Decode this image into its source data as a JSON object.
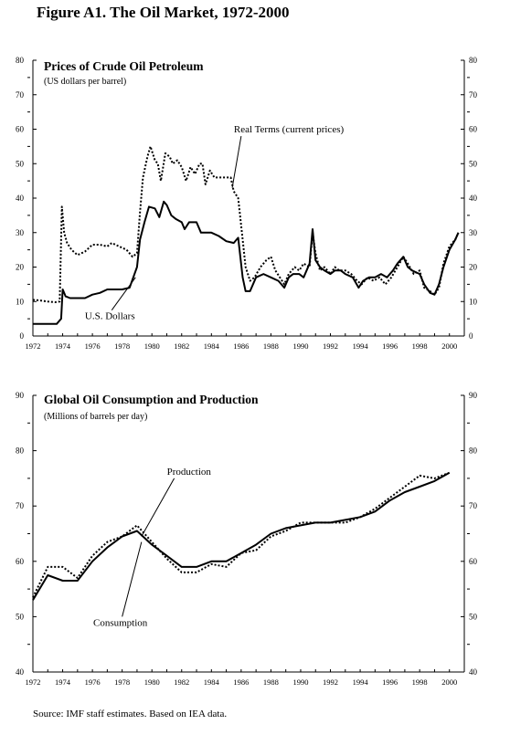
{
  "figure_title": "Figure  A1. The Oil Market, 1972-2000",
  "source": "Source:  IMF staff estimates.  Based on IEA data.",
  "chart_data": [
    {
      "type": "line",
      "title": "Prices of Crude Oil Petroleum",
      "subtitle": "(US dollars per barrel)",
      "xlim": [
        1972,
        2001
      ],
      "ylim": [
        0,
        80
      ],
      "x_ticks": [
        "1972",
        "1974",
        "1976",
        "1978",
        "1980",
        "1982",
        "1984",
        "1986",
        "1988",
        "1990",
        "1992",
        "1994",
        "1996",
        "1998",
        "2000"
      ],
      "y_ticks": [
        "0",
        "10",
        "20",
        "30",
        "40",
        "50",
        "60",
        "70",
        "80"
      ],
      "grid": false,
      "series": [
        {
          "name": "Real Terms (current prices)",
          "style": "dotted",
          "points": [
            [
              1972.0,
              10.5
            ],
            [
              1972.5,
              10.3
            ],
            [
              1973.0,
              10.0
            ],
            [
              1973.5,
              9.8
            ],
            [
              1973.8,
              10.0
            ],
            [
              1973.95,
              37.5
            ],
            [
              1974.1,
              30
            ],
            [
              1974.3,
              27
            ],
            [
              1974.6,
              25
            ],
            [
              1975.0,
              23.5
            ],
            [
              1975.5,
              24.5
            ],
            [
              1976.0,
              26.5
            ],
            [
              1976.5,
              26.5
            ],
            [
              1977.0,
              26
            ],
            [
              1977.3,
              27
            ],
            [
              1977.8,
              26
            ],
            [
              1978.3,
              25
            ],
            [
              1978.7,
              23
            ],
            [
              1979.0,
              24
            ],
            [
              1979.2,
              36
            ],
            [
              1979.4,
              46
            ],
            [
              1979.7,
              52
            ],
            [
              1979.9,
              55
            ],
            [
              1980.2,
              51
            ],
            [
              1980.4,
              50
            ],
            [
              1980.6,
              45
            ],
            [
              1980.9,
              53
            ],
            [
              1981.2,
              52
            ],
            [
              1981.4,
              50
            ],
            [
              1981.7,
              51
            ],
            [
              1982.0,
              49
            ],
            [
              1982.3,
              45
            ],
            [
              1982.6,
              49
            ],
            [
              1982.9,
              47
            ],
            [
              1983.2,
              50
            ],
            [
              1983.4,
              50
            ],
            [
              1983.6,
              44
            ],
            [
              1983.9,
              48
            ],
            [
              1984.2,
              46
            ],
            [
              1984.5,
              46
            ],
            [
              1985.0,
              46
            ],
            [
              1985.3,
              46
            ],
            [
              1985.5,
              42
            ],
            [
              1985.8,
              40
            ],
            [
              1986.1,
              28
            ],
            [
              1986.3,
              20
            ],
            [
              1986.6,
              16
            ],
            [
              1986.9,
              17
            ],
            [
              1987.3,
              20
            ],
            [
              1987.7,
              22
            ],
            [
              1988.0,
              23
            ],
            [
              1988.3,
              19
            ],
            [
              1988.6,
              17
            ],
            [
              1988.9,
              15
            ],
            [
              1989.2,
              18
            ],
            [
              1989.6,
              20
            ],
            [
              1989.9,
              19
            ],
            [
              1990.2,
              21
            ],
            [
              1990.6,
              20
            ],
            [
              1990.8,
              30
            ],
            [
              1991.0,
              24
            ],
            [
              1991.3,
              19
            ],
            [
              1991.6,
              20
            ],
            [
              1992.0,
              18
            ],
            [
              1992.3,
              20
            ],
            [
              1992.6,
              19
            ],
            [
              1993.0,
              19
            ],
            [
              1993.4,
              18
            ],
            [
              1993.8,
              16
            ],
            [
              1994.1,
              15
            ],
            [
              1994.5,
              17
            ],
            [
              1994.9,
              16
            ],
            [
              1995.3,
              17
            ],
            [
              1995.7,
              15
            ],
            [
              1996.1,
              17
            ],
            [
              1996.5,
              20
            ],
            [
              1996.9,
              23
            ],
            [
              1997.2,
              21
            ],
            [
              1997.6,
              18
            ],
            [
              1998.0,
              19
            ],
            [
              1998.3,
              14
            ],
            [
              1998.7,
              13
            ],
            [
              1999.0,
              12
            ],
            [
              1999.3,
              14
            ],
            [
              1999.6,
              21
            ],
            [
              2000.0,
              26
            ],
            [
              2000.4,
              28
            ],
            [
              2000.6,
              30
            ]
          ]
        },
        {
          "name": "U.S. Dollars",
          "style": "solid",
          "points": [
            [
              1972.0,
              3.5
            ],
            [
              1972.5,
              3.5
            ],
            [
              1973.0,
              3.5
            ],
            [
              1973.6,
              3.5
            ],
            [
              1973.9,
              5
            ],
            [
              1974.0,
              13.5
            ],
            [
              1974.2,
              11.5
            ],
            [
              1974.5,
              11
            ],
            [
              1975.0,
              11
            ],
            [
              1975.5,
              11
            ],
            [
              1976.0,
              12
            ],
            [
              1976.5,
              12.5
            ],
            [
              1977.0,
              13.5
            ],
            [
              1977.5,
              13.5
            ],
            [
              1978.0,
              13.5
            ],
            [
              1978.5,
              14
            ],
            [
              1979.0,
              20
            ],
            [
              1979.2,
              28
            ],
            [
              1979.5,
              33
            ],
            [
              1979.8,
              37.5
            ],
            [
              1980.2,
              37
            ],
            [
              1980.5,
              34.5
            ],
            [
              1980.8,
              39
            ],
            [
              1981.0,
              38
            ],
            [
              1981.3,
              35
            ],
            [
              1981.6,
              34
            ],
            [
              1982.0,
              33
            ],
            [
              1982.2,
              31
            ],
            [
              1982.5,
              33
            ],
            [
              1983.0,
              33
            ],
            [
              1983.3,
              30
            ],
            [
              1983.6,
              30
            ],
            [
              1984.0,
              30
            ],
            [
              1984.5,
              29
            ],
            [
              1985.0,
              27.5
            ],
            [
              1985.5,
              27
            ],
            [
              1985.8,
              28.5
            ],
            [
              1986.1,
              17
            ],
            [
              1986.3,
              13
            ],
            [
              1986.6,
              13
            ],
            [
              1987.0,
              17
            ],
            [
              1987.5,
              18
            ],
            [
              1988.0,
              17
            ],
            [
              1988.5,
              16
            ],
            [
              1988.9,
              14
            ],
            [
              1989.2,
              17
            ],
            [
              1989.5,
              18
            ],
            [
              1989.9,
              18
            ],
            [
              1990.2,
              17
            ],
            [
              1990.6,
              21
            ],
            [
              1990.8,
              31
            ],
            [
              1991.0,
              22
            ],
            [
              1991.3,
              20
            ],
            [
              1991.6,
              19
            ],
            [
              1992.0,
              18
            ],
            [
              1992.3,
              19
            ],
            [
              1992.7,
              19
            ],
            [
              1993.0,
              18
            ],
            [
              1993.5,
              17
            ],
            [
              1993.9,
              14
            ],
            [
              1994.2,
              16
            ],
            [
              1994.6,
              17
            ],
            [
              1995.0,
              17
            ],
            [
              1995.4,
              18
            ],
            [
              1995.8,
              17
            ],
            [
              1996.2,
              19
            ],
            [
              1996.5,
              21
            ],
            [
              1996.9,
              23
            ],
            [
              1997.2,
              20
            ],
            [
              1997.5,
              19
            ],
            [
              1998.0,
              18
            ],
            [
              1998.3,
              15
            ],
            [
              1998.7,
              12.5
            ],
            [
              1999.0,
              12
            ],
            [
              1999.3,
              15
            ],
            [
              1999.6,
              20
            ],
            [
              2000.0,
              25
            ],
            [
              2000.4,
              28
            ],
            [
              2000.6,
              30
            ]
          ]
        }
      ],
      "annotations": [
        {
          "text": "Real Terms (current prices)",
          "target": [
            1985.4,
            43
          ],
          "label_at": [
            1986,
            58
          ]
        },
        {
          "text": "U.S. Dollars",
          "target": [
            1978.9,
            17
          ],
          "label_at": [
            1977.3,
            7.5
          ]
        }
      ]
    },
    {
      "type": "line",
      "title": "Global Oil Consumption and Production",
      "subtitle": "(Millions of barrels per day)",
      "xlim": [
        1972,
        2001
      ],
      "ylim": [
        40,
        90
      ],
      "x_ticks": [
        "1972",
        "1974",
        "1976",
        "1978",
        "1980",
        "1982",
        "1984",
        "1986",
        "1988",
        "1990",
        "1992",
        "1994",
        "1996",
        "1998",
        "2000"
      ],
      "y_ticks": [
        "40",
        "50",
        "60",
        "70",
        "80",
        "90"
      ],
      "grid": false,
      "series": [
        {
          "name": "Production",
          "style": "dotted",
          "points": [
            [
              1972,
              53.5
            ],
            [
              1973,
              59
            ],
            [
              1974,
              59
            ],
            [
              1975,
              57
            ],
            [
              1976,
              61
            ],
            [
              1977,
              63.5
            ],
            [
              1978,
              64.5
            ],
            [
              1979,
              66.5
            ],
            [
              1980,
              63.5
            ],
            [
              1981,
              60.5
            ],
            [
              1982,
              58
            ],
            [
              1983,
              58
            ],
            [
              1984,
              59.5
            ],
            [
              1985,
              59
            ],
            [
              1986,
              61.5
            ],
            [
              1987,
              62
            ],
            [
              1988,
              64.5
            ],
            [
              1989,
              65.5
            ],
            [
              1990,
              67
            ],
            [
              1991,
              67
            ],
            [
              1992,
              67
            ],
            [
              1993,
              67
            ],
            [
              1994,
              68
            ],
            [
              1995,
              69.5
            ],
            [
              1996,
              71.5
            ],
            [
              1997,
              73.5
            ],
            [
              1998,
              75.5
            ],
            [
              1999,
              75
            ],
            [
              2000,
              76
            ]
          ]
        },
        {
          "name": "Consumption",
          "style": "solid",
          "points": [
            [
              1972,
              53
            ],
            [
              1973,
              57.5
            ],
            [
              1974,
              56.5
            ],
            [
              1975,
              56.5
            ],
            [
              1976,
              60
            ],
            [
              1977,
              62.5
            ],
            [
              1978,
              64.5
            ],
            [
              1979,
              65.5
            ],
            [
              1980,
              63
            ],
            [
              1981,
              61
            ],
            [
              1982,
              59
            ],
            [
              1983,
              59
            ],
            [
              1984,
              60
            ],
            [
              1985,
              60
            ],
            [
              1986,
              61.5
            ],
            [
              1987,
              63
            ],
            [
              1988,
              65
            ],
            [
              1989,
              66
            ],
            [
              1990,
              66.5
            ],
            [
              1991,
              67
            ],
            [
              1992,
              67
            ],
            [
              1993,
              67.5
            ],
            [
              1994,
              68
            ],
            [
              1995,
              69
            ],
            [
              1996,
              71
            ],
            [
              1997,
              72.5
            ],
            [
              1998,
              73.5
            ],
            [
              1999,
              74.5
            ],
            [
              2000,
              76
            ]
          ]
        }
      ],
      "annotations": [
        {
          "text": "Production",
          "target": [
            1979.3,
            64.5
          ],
          "label_at": [
            1981.5,
            75
          ]
        },
        {
          "text": "Consumption",
          "target": [
            1979.3,
            63.5
          ],
          "label_at": [
            1978,
            50
          ]
        }
      ]
    }
  ]
}
